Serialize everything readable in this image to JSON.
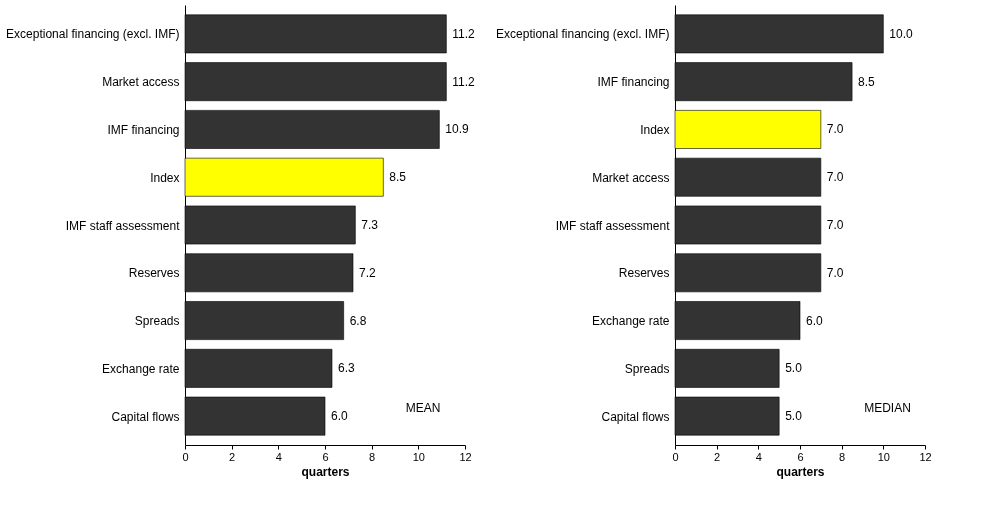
{
  "chart_data": [
    {
      "type": "bar",
      "orientation": "horizontal",
      "xlabel": "quarters",
      "categories": [
        "Exceptional financing (excl. IMF)",
        "Market access",
        "IMF financing",
        "Index",
        "IMF staff assessment",
        "Reserves",
        "Spreads",
        "Exchange rate",
        "Capital flows"
      ],
      "values": [
        11.2,
        11.2,
        10.9,
        8.5,
        7.3,
        7.2,
        6.8,
        6.3,
        6.0
      ],
      "value_labels": [
        "11.2",
        "11.2",
        "10.9",
        "8.5",
        "7.3",
        "7.2",
        "6.8",
        "6.3",
        "6.0"
      ],
      "colors": [
        "#333333",
        "#333333",
        "#333333",
        "#ffff00",
        "#333333",
        "#333333",
        "#333333",
        "#333333",
        "#333333"
      ],
      "xlim": [
        0,
        12
      ],
      "xticks": [
        0,
        2,
        4,
        6,
        8,
        10,
        12
      ],
      "grid": false,
      "legend": false,
      "annotations": [
        "MEAN"
      ]
    },
    {
      "type": "bar",
      "orientation": "horizontal",
      "xlabel": "quarters",
      "categories": [
        "Exceptional financing (excl. IMF)",
        "IMF financing",
        "Index",
        "Market access",
        "IMF staff assessment",
        "Reserves",
        "Exchange rate",
        "Spreads",
        "Capital flows"
      ],
      "values": [
        10.0,
        8.5,
        7.0,
        7.0,
        7.0,
        7.0,
        6.0,
        5.0,
        5.0
      ],
      "value_labels": [
        "10.0",
        "8.5",
        "7.0",
        "7.0",
        "7.0",
        "7.0",
        "6.0",
        "5.0",
        "5.0"
      ],
      "colors": [
        "#333333",
        "#333333",
        "#ffff00",
        "#333333",
        "#333333",
        "#333333",
        "#333333",
        "#333333",
        "#333333"
      ],
      "xlim": [
        0,
        12
      ],
      "xticks": [
        0,
        2,
        4,
        6,
        8,
        10,
        12
      ],
      "grid": false,
      "legend": false,
      "annotations": [
        "MEDIAN"
      ]
    }
  ]
}
